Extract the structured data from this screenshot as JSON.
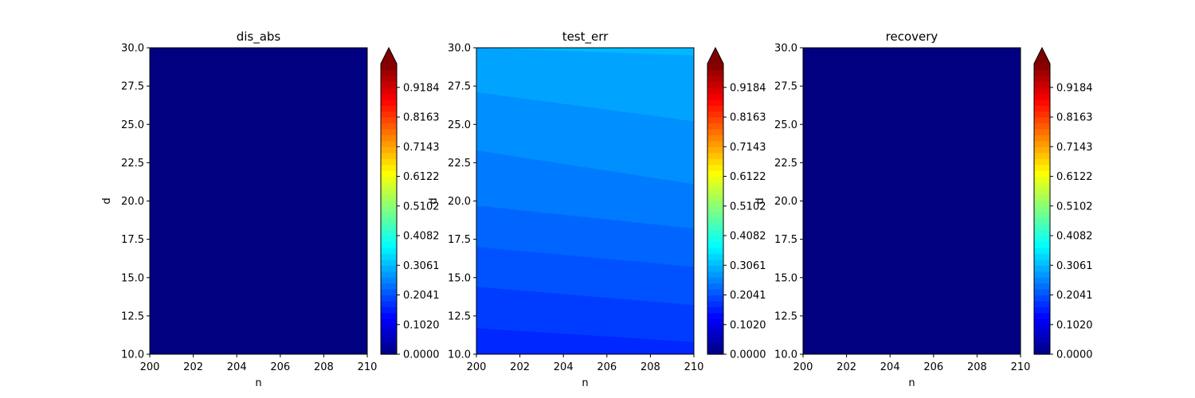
{
  "chart_data": [
    {
      "type": "heatmap",
      "title": "dis_abs",
      "xlabel": "n",
      "ylabel": "d",
      "xlim": [
        200,
        210
      ],
      "ylim": [
        10,
        30
      ],
      "x_ticks": [
        "200",
        "202",
        "204",
        "206",
        "208",
        "210"
      ],
      "y_ticks": [
        "10.0",
        "12.5",
        "15.0",
        "17.5",
        "20.0",
        "22.5",
        "25.0",
        "27.5",
        "30.0"
      ],
      "fill": "uniform",
      "value": 0.0,
      "colorbar": {
        "colormap": "jet",
        "range": [
          0.0,
          1.0
        ],
        "extend": "max",
        "ticks": [
          "0.0000",
          "0.1020",
          "0.2041",
          "0.3061",
          "0.4082",
          "0.5102",
          "0.6122",
          "0.7143",
          "0.8163",
          "0.9184"
        ]
      }
    },
    {
      "type": "heatmap",
      "title": "test_err",
      "xlabel": "n",
      "ylabel": "d",
      "xlim": [
        200,
        210
      ],
      "ylim": [
        10,
        30
      ],
      "x_ticks": [
        "200",
        "202",
        "204",
        "206",
        "208",
        "210"
      ],
      "y_ticks": [
        "10.0",
        "12.5",
        "15.0",
        "17.5",
        "20.0",
        "22.5",
        "25.0",
        "27.5",
        "30.0"
      ],
      "fill": "contour-bands",
      "bands": [
        {
          "level": 0.163,
          "boundary_left": 11.7,
          "boundary_right": 10.8
        },
        {
          "level": 0.184,
          "boundary_left": 14.4,
          "boundary_right": 13.2
        },
        {
          "level": 0.204,
          "boundary_left": 17.0,
          "boundary_right": 15.7
        },
        {
          "level": 0.224,
          "boundary_left": 19.7,
          "boundary_right": 18.2
        },
        {
          "level": 0.245,
          "boundary_left": 23.3,
          "boundary_right": 21.1
        },
        {
          "level": 0.265,
          "boundary_left": 27.1,
          "boundary_right": 25.2
        },
        {
          "level": 0.286,
          "boundary_left": 30.0,
          "boundary_right": 29.5
        },
        {
          "level": 0.306,
          "boundary_left": null,
          "boundary_right": null
        }
      ],
      "colorbar": {
        "colormap": "jet",
        "range": [
          0.0,
          1.0
        ],
        "extend": "max",
        "ticks": [
          "0.0000",
          "0.1020",
          "0.2041",
          "0.3061",
          "0.4082",
          "0.5102",
          "0.6122",
          "0.7143",
          "0.8163",
          "0.9184"
        ]
      }
    },
    {
      "type": "heatmap",
      "title": "recovery",
      "xlabel": "n",
      "ylabel": "d",
      "xlim": [
        200,
        210
      ],
      "ylim": [
        10,
        30
      ],
      "x_ticks": [
        "200",
        "202",
        "204",
        "206",
        "208",
        "210"
      ],
      "y_ticks": [
        "10.0",
        "12.5",
        "15.0",
        "17.5",
        "20.0",
        "22.5",
        "25.0",
        "27.5",
        "30.0"
      ],
      "fill": "uniform",
      "value": 0.0,
      "colorbar": {
        "colormap": "jet",
        "range": [
          0.0,
          1.0
        ],
        "extend": "max",
        "ticks": [
          "0.0000",
          "0.1020",
          "0.2041",
          "0.3061",
          "0.4082",
          "0.5102",
          "0.6122",
          "0.7143",
          "0.8163",
          "0.9184"
        ]
      }
    }
  ]
}
